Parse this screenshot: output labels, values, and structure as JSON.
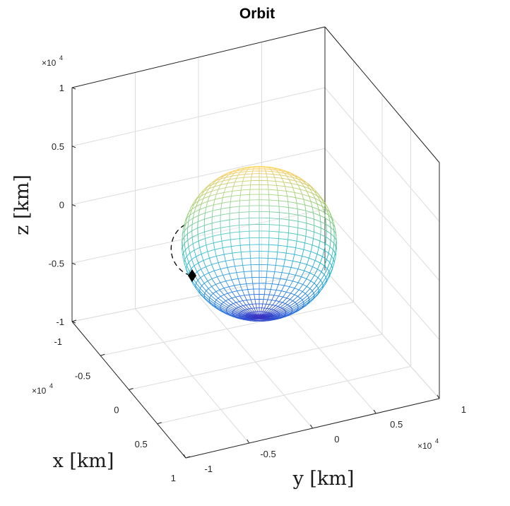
{
  "chart_data": {
    "type": "3d-surface",
    "title": "Orbit",
    "xlabel": "x [km]",
    "ylabel": "y [km]",
    "zlabel": "z [km]",
    "x_ticks": [
      "-1",
      "-0.5",
      "0",
      "0.5",
      "1"
    ],
    "y_ticks": [
      "-1",
      "-0.5",
      "0",
      "0.5",
      "1"
    ],
    "z_ticks": [
      "-1",
      "-0.5",
      "0",
      "0.5",
      "1"
    ],
    "exponent_label": "×10",
    "exponent_power": "4",
    "xlim": [
      -10000,
      10000
    ],
    "ylim": [
      -10000,
      10000
    ],
    "zlim": [
      -10000,
      10000
    ],
    "grid": true,
    "series": [
      {
        "kind": "sphere-mesh",
        "radius_km": 6378,
        "center": [
          0,
          0,
          0
        ],
        "colormap": "parula"
      },
      {
        "kind": "orbit-path",
        "line_style": "dashed",
        "color": "#000000"
      },
      {
        "kind": "spacecraft-marker",
        "marker": "diamond",
        "color": "#000000"
      }
    ]
  }
}
